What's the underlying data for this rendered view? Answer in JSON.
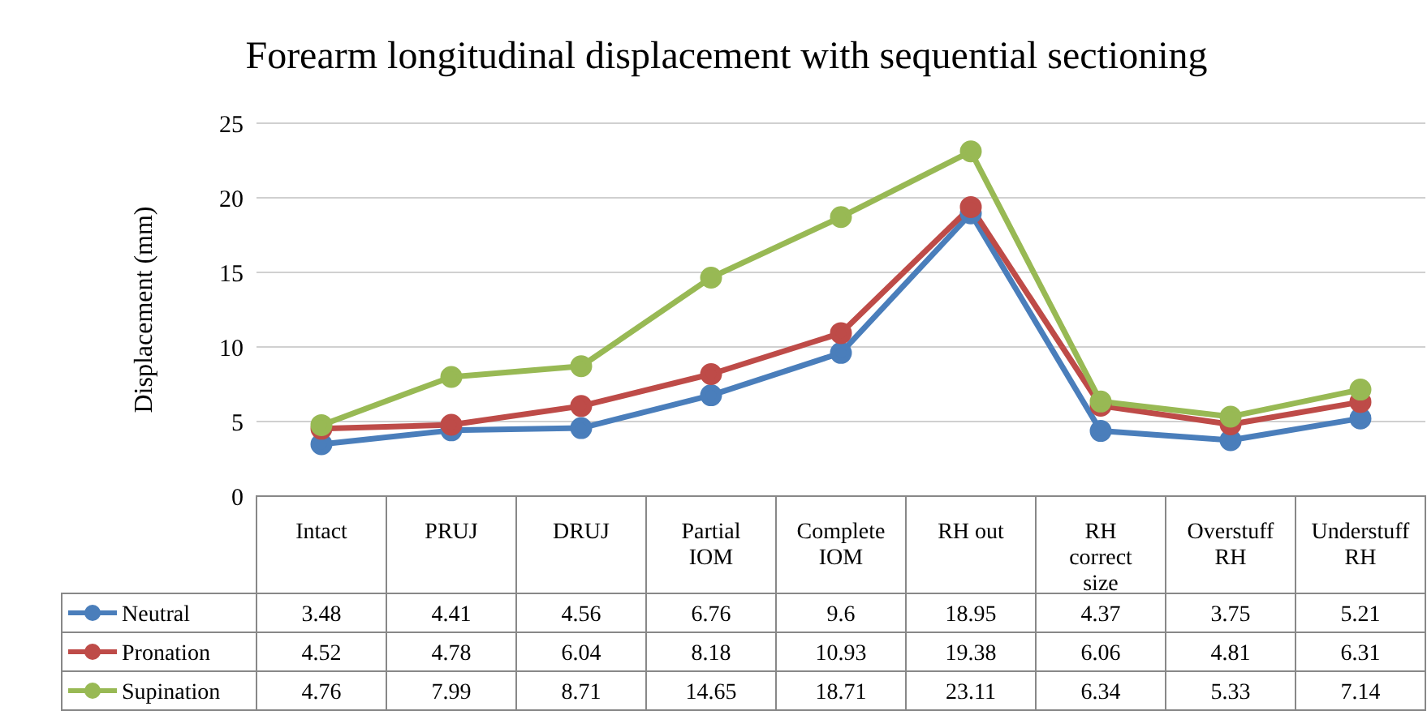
{
  "chart_data": {
    "type": "line",
    "title": "Forearm longitudinal displacement with sequential sectioning",
    "ylabel": "Displacement (mm)",
    "categories": [
      "Intact",
      "PRUJ",
      "DRUJ",
      "Partial IOM",
      "Complete IOM",
      "RH out",
      "RH correct size",
      "Overstuff RH",
      "Understuff RH"
    ],
    "series": [
      {
        "name": "Neutral",
        "color": "#4a7ebb",
        "values": [
          3.48,
          4.41,
          4.56,
          6.76,
          9.6,
          18.95,
          4.37,
          3.75,
          5.21
        ]
      },
      {
        "name": "Pronation",
        "color": "#be4b48",
        "values": [
          4.52,
          4.78,
          6.04,
          8.18,
          10.93,
          19.38,
          6.06,
          4.81,
          6.31
        ]
      },
      {
        "name": "Supination",
        "color": "#98b954",
        "values": [
          4.76,
          7.99,
          8.71,
          14.65,
          18.71,
          23.11,
          6.34,
          5.33,
          7.14
        ]
      }
    ],
    "ylim": [
      0,
      25
    ],
    "yticks": [
      0,
      5,
      10,
      15,
      20,
      25
    ],
    "grid": "y",
    "legend": "bottom",
    "marker": "circle",
    "line_style": "solid",
    "data_labels": true
  }
}
